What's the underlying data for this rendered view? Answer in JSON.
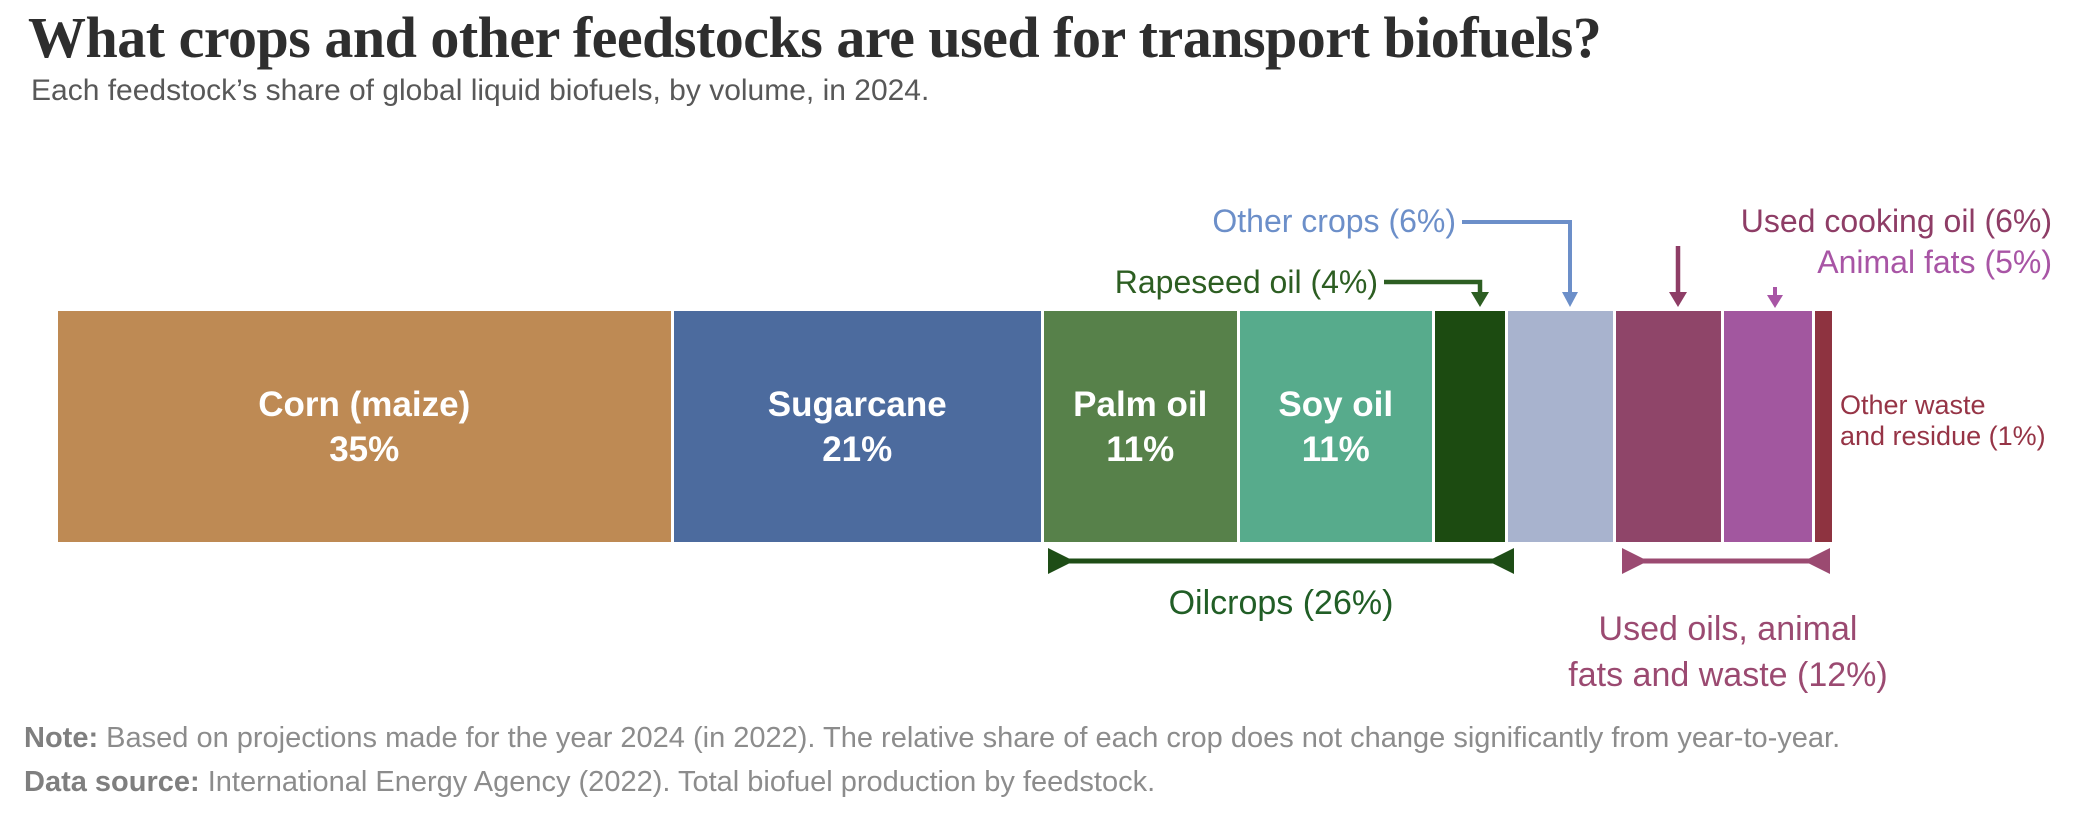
{
  "header": {
    "title": "What crops and other feedstocks are used for transport biofuels?",
    "subtitle": "Each feedstock’s share of global liquid biofuels, by volume, in 2024."
  },
  "chart_data": {
    "type": "bar",
    "orientation": "horizontal-stacked",
    "unit": "%",
    "total": 100,
    "categories": [
      "Corn (maize)",
      "Sugarcane",
      "Palm oil",
      "Soy oil",
      "Rapeseed oil",
      "Other crops",
      "Used cooking oil",
      "Animal fats",
      "Other waste and residue"
    ],
    "values": [
      35,
      21,
      11,
      11,
      4,
      6,
      6,
      5,
      1
    ],
    "segments": [
      {
        "name": "Corn (maize)",
        "value": 35,
        "pct_text": "35%",
        "color": "#BE8A54",
        "show_label": true
      },
      {
        "name": "Sugarcane",
        "value": 21,
        "pct_text": "21%",
        "color": "#4C6B9E",
        "show_label": true
      },
      {
        "name": "Palm oil",
        "value": 11,
        "pct_text": "11%",
        "color": "#57814A",
        "show_label": true
      },
      {
        "name": "Soy oil",
        "value": 11,
        "pct_text": "11%",
        "color": "#57AB8C",
        "show_label": true
      },
      {
        "name": "Rapeseed oil",
        "value": 4,
        "pct_text": "4%",
        "color": "#1C4B11",
        "show_label": false
      },
      {
        "name": "Other crops",
        "value": 6,
        "pct_text": "6%",
        "color": "#A8B3CE",
        "show_label": false
      },
      {
        "name": "Used cooking oil",
        "value": 6,
        "pct_text": "6%",
        "color": "#8F4569",
        "show_label": false
      },
      {
        "name": "Animal fats",
        "value": 5,
        "pct_text": "5%",
        "color": "#A2579F",
        "show_label": false
      },
      {
        "name": "Other waste and residue",
        "value": 1,
        "pct_text": "1%",
        "color": "#8E3340",
        "show_label": false
      }
    ],
    "group_brackets": [
      {
        "label": "Oilcrops (26%)",
        "members": [
          "Palm oil",
          "Soy oil",
          "Rapeseed oil"
        ],
        "total": 26,
        "color": "#1E4D16"
      },
      {
        "label": "Used oils, animal fats and waste (12%)",
        "members": [
          "Used cooking oil",
          "Animal fats",
          "Other waste and residue"
        ],
        "total": 12,
        "color": "#9B4A71"
      }
    ]
  },
  "annotations": {
    "other_crops": "Other crops (6%)",
    "rapeseed": "Rapeseed oil (4%)",
    "used_cooking": "Used cooking oil (6%)",
    "animal_fats": "Animal fats (5%)",
    "other_waste_line1": "Other waste",
    "other_waste_line2": "and residue (1%)",
    "oilcrops": "Oilcrops (26%)",
    "used_oils_line1": "Used oils, animal",
    "used_oils_line2": "fats and waste (12%)"
  },
  "footer": {
    "note_label": "Note:",
    "note_text": " Based on projections made for the year 2024 (in 2022). The relative share of each crop does not change significantly from year-to-year.",
    "source_label": "Data source:",
    "source_text": " International Energy Agency (2022). Total biofuel production by feedstock."
  }
}
